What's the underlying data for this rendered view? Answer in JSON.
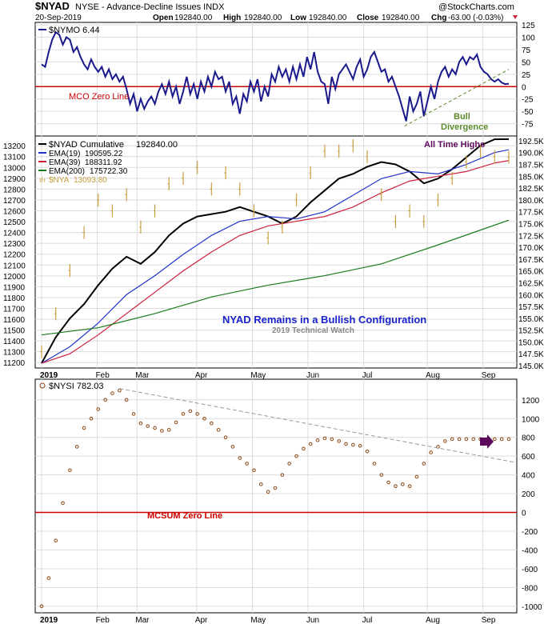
{
  "header": {
    "symbol": "$NYAD",
    "description": "NYSE - Advance-Decline Issues INDX",
    "watermark": "@StockCharts.com",
    "date": "20-Sep-2019",
    "open_label": "Open",
    "open_value": "192840.00",
    "high_label": "High",
    "high_value": "192840.00",
    "low_label": "Low",
    "low_value": "192840.00",
    "close_label": "Close",
    "close_value": "192840.00",
    "chg_label": "Chg",
    "chg_value": "-63.00 (-0.03%)"
  },
  "colors": {
    "navy": "#1a1a8c",
    "red": "#cc0000",
    "green": "#1a7a1a",
    "gold": "#c8a040",
    "brown": "#8b4513",
    "purple": "#5c0a5c",
    "bullGreen": "#5a8a2a",
    "crimson": "#cc1f3a",
    "blue": "#2233cc",
    "grid": "#dcdcdc",
    "trend": "#999999"
  },
  "x_axis": {
    "labels": [
      "2019",
      "Feb",
      "Mar",
      "Apr",
      "May",
      "Jun",
      "Jul",
      "Aug",
      "Sep"
    ],
    "months_per_panel_top": [
      "2019",
      "Feb",
      "Mar",
      "Apr",
      "May",
      "Jun",
      "Jul",
      "Aug",
      "Sep"
    ],
    "months_per_panel_bottom": [
      "2019",
      "Feb",
      "Mar",
      "Apr",
      "May",
      "Jun",
      "Jul",
      "Aug",
      "Sep"
    ]
  },
  "chart_data": [
    {
      "type": "line",
      "panel": "NYMO",
      "legend": "$NYMO 6.44",
      "ylim": [
        -100,
        130
      ],
      "yticks": [
        125,
        100,
        75,
        50,
        25,
        0,
        -25,
        -50,
        -75
      ],
      "zero_line_label": "MCO Zero Line",
      "annotation": [
        "Bull",
        "Divergence"
      ],
      "series": [
        {
          "name": "$NYMO",
          "x": [
            0,
            2,
            4,
            6,
            8,
            10,
            12,
            14,
            16,
            18,
            20,
            22,
            24,
            26,
            28,
            30,
            32,
            34,
            36,
            38,
            40,
            42,
            44,
            46,
            48,
            50,
            52,
            54,
            56,
            58,
            60,
            62,
            64,
            66,
            68,
            70,
            72,
            74,
            76,
            78,
            80,
            82,
            84,
            86,
            88,
            90,
            92,
            94,
            96,
            98,
            100,
            102,
            104,
            106,
            108,
            110,
            112,
            114,
            116,
            118,
            120,
            122,
            124,
            126,
            128,
            130,
            132,
            134,
            136,
            138,
            140,
            142,
            144,
            146,
            148,
            150,
            152,
            154,
            156,
            158,
            160,
            162,
            164,
            166,
            168,
            170,
            172,
            174,
            176,
            178,
            180,
            182,
            184,
            186,
            188,
            190,
            192,
            194,
            196,
            198,
            200,
            202,
            204,
            206,
            208,
            210,
            212,
            214,
            216,
            218,
            220,
            222,
            224,
            226,
            228,
            230,
            232,
            234,
            236,
            238,
            240,
            242,
            244,
            246,
            248,
            250,
            252,
            254,
            256,
            258,
            260,
            262,
            264
          ],
          "values": [
            45,
            40,
            70,
            95,
            110,
            105,
            85,
            100,
            95,
            70,
            80,
            60,
            45,
            35,
            55,
            40,
            30,
            40,
            20,
            35,
            15,
            25,
            10,
            20,
            -5,
            -35,
            -15,
            -50,
            -25,
            -45,
            -30,
            -20,
            -35,
            -10,
            5,
            -15,
            10,
            -20,
            0,
            -35,
            -10,
            20,
            -15,
            5,
            -25,
            10,
            -10,
            20,
            0,
            30,
            15,
            20,
            -10,
            10,
            -35,
            -20,
            -55,
            -15,
            -30,
            10,
            -10,
            15,
            -30,
            0,
            -20,
            25,
            10,
            40,
            20,
            35,
            10,
            40,
            15,
            45,
            20,
            60,
            35,
            70,
            30,
            10,
            5,
            -35,
            20,
            -5,
            25,
            35,
            45,
            30,
            15,
            40,
            55,
            20,
            35,
            60,
            70,
            50,
            30,
            35,
            10,
            20,
            0,
            -20,
            -45,
            -70,
            -20,
            -50,
            -35,
            -10,
            -60,
            -30,
            0,
            -25,
            10,
            30,
            40,
            20,
            35,
            25,
            50,
            60,
            45,
            60,
            55,
            65,
            40,
            30,
            25,
            15,
            10,
            15,
            8,
            5,
            6
          ]
        }
      ]
    },
    {
      "type": "line",
      "panel": "NYAD",
      "title": "NYAD Remains in a Bullish Configuration",
      "subtitle": "2019 Technical Watch",
      "annotation": "All Time Highs",
      "ylim_left": [
        11150,
        13290
      ],
      "yticks_left": [
        13200,
        13100,
        13000,
        12900,
        12800,
        12700,
        12600,
        12500,
        12400,
        12300,
        12200,
        12100,
        12000,
        11900,
        11800,
        11700,
        11600,
        11500,
        11400,
        11300,
        11200
      ],
      "ylim_right": [
        144500,
        193500
      ],
      "yticks_right": [
        "192.5K",
        "190.0K",
        "187.5K",
        "185.0K",
        "182.5K",
        "180.0K",
        "177.5K",
        "175.0K",
        "172.5K",
        "170.0K",
        "167.5K",
        "165.0K",
        "162.5K",
        "160.0K",
        "157.5K",
        "155.0K",
        "152.5K",
        "150.0K",
        "147.5K",
        "145.0K"
      ],
      "legend": [
        {
          "name": "$NYAD Cumulative",
          "value": "192840.00"
        },
        {
          "name": "EMA(19)",
          "value": "190595.22"
        },
        {
          "name": "EMA(39)",
          "value": "188311.92"
        },
        {
          "name": "EMA(200)",
          "value": "175722.30"
        },
        {
          "name": "$NYA",
          "value": "13093.80"
        }
      ],
      "series": [
        {
          "name": "$NYAD Cumulative",
          "x": [
            0,
            8,
            16,
            24,
            32,
            40,
            48,
            56,
            64,
            72,
            80,
            88,
            96,
            104,
            112,
            120,
            128,
            136,
            144,
            152,
            160,
            168,
            176,
            184,
            192,
            200,
            208,
            216,
            224,
            232,
            240,
            248,
            256,
            264
          ],
          "values": [
            145500,
            151000,
            155000,
            158000,
            162000,
            165500,
            168000,
            166500,
            169000,
            172500,
            175000,
            176500,
            177000,
            177500,
            178500,
            177500,
            176500,
            175000,
            176500,
            179500,
            182000,
            184500,
            185500,
            187000,
            188000,
            187500,
            186000,
            183500,
            184500,
            186500,
            189000,
            191500,
            192800,
            192840
          ]
        },
        {
          "name": "EMA(19)",
          "x": [
            0,
            16,
            32,
            48,
            64,
            80,
            96,
            112,
            128,
            144,
            160,
            176,
            192,
            208,
            224,
            240,
            256,
            264
          ],
          "values": [
            145500,
            149000,
            154000,
            160000,
            164000,
            168500,
            172500,
            175500,
            176500,
            176000,
            177500,
            181000,
            184500,
            186000,
            185500,
            187500,
            190000,
            190595
          ]
        },
        {
          "name": "EMA(39)",
          "x": [
            0,
            16,
            32,
            48,
            64,
            80,
            96,
            112,
            128,
            144,
            160,
            176,
            192,
            208,
            224,
            240,
            256,
            264
          ],
          "values": [
            145500,
            147500,
            151500,
            156000,
            160500,
            165000,
            169000,
            172500,
            174500,
            175500,
            176500,
            178500,
            181500,
            184000,
            185000,
            186000,
            187800,
            188312
          ]
        },
        {
          "name": "EMA(200)",
          "x": [
            0,
            32,
            64,
            96,
            128,
            160,
            192,
            224,
            264
          ],
          "values": [
            151500,
            153000,
            156000,
            159500,
            162000,
            164000,
            166500,
            170500,
            175722
          ]
        },
        {
          "name": "$NYA",
          "x": [
            0,
            8,
            16,
            24,
            32,
            40,
            48,
            56,
            64,
            72,
            80,
            88,
            96,
            104,
            112,
            120,
            128,
            136,
            144,
            152,
            160,
            168,
            176,
            184,
            192,
            200,
            208,
            216,
            224,
            232,
            240,
            248,
            256,
            264
          ],
          "values": [
            11300,
            11650,
            12050,
            12400,
            12700,
            12600,
            12750,
            12450,
            12600,
            12850,
            12900,
            13000,
            12800,
            12950,
            12800,
            12600,
            12350,
            12450,
            12700,
            12950,
            13150,
            13150,
            13200,
            13100,
            12750,
            12500,
            12600,
            12500,
            12700,
            12900,
            13050,
            13150,
            13100,
            13094
          ]
        }
      ]
    },
    {
      "type": "scatter",
      "panel": "NYSI",
      "legend": "$NYSI 782.03",
      "ylim": [
        -1070,
        1420
      ],
      "yticks": [
        1200,
        1000,
        800,
        600,
        400,
        200,
        0,
        -200,
        -400,
        -600,
        -800,
        -1000
      ],
      "zero_line_label": "MCSUM Zero Line",
      "series": [
        {
          "name": "$NYSI",
          "x": [
            0,
            4,
            8,
            12,
            16,
            20,
            24,
            28,
            32,
            36,
            40,
            44,
            48,
            52,
            56,
            60,
            64,
            68,
            72,
            76,
            80,
            84,
            88,
            92,
            96,
            100,
            104,
            108,
            112,
            116,
            120,
            124,
            128,
            132,
            136,
            140,
            144,
            148,
            152,
            156,
            160,
            164,
            168,
            172,
            176,
            180,
            184,
            188,
            192,
            196,
            200,
            204,
            208,
            212,
            216,
            220,
            224,
            228,
            232,
            236,
            240,
            244,
            248,
            252,
            256,
            260,
            264
          ],
          "values": [
            -1000,
            -700,
            -300,
            100,
            450,
            700,
            900,
            1000,
            1100,
            1200,
            1270,
            1300,
            1200,
            1050,
            950,
            920,
            900,
            870,
            880,
            960,
            1050,
            1080,
            1050,
            1000,
            950,
            880,
            800,
            700,
            580,
            520,
            450,
            300,
            220,
            260,
            400,
            520,
            600,
            680,
            730,
            770,
            790,
            780,
            760,
            730,
            720,
            710,
            650,
            520,
            400,
            320,
            280,
            300,
            280,
            380,
            520,
            640,
            700,
            760,
            782,
            782,
            782,
            782,
            782,
            782,
            782,
            782,
            782
          ]
        }
      ]
    }
  ]
}
